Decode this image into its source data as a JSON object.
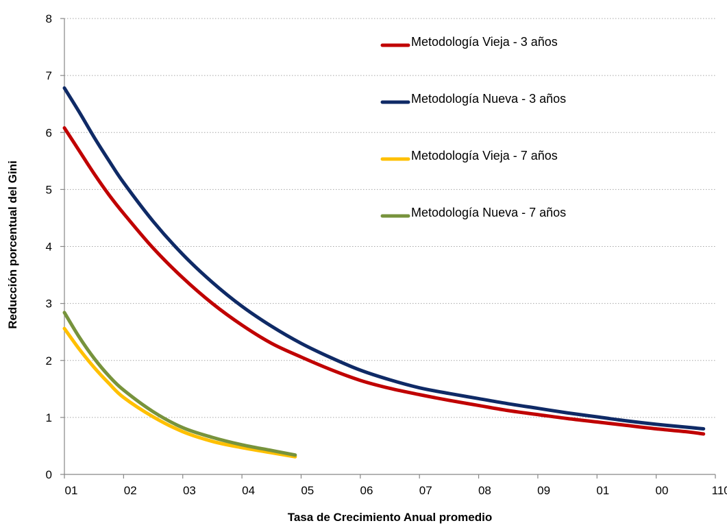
{
  "chart_data": {
    "type": "line",
    "title": "",
    "xlabel": "Tasa de Crecimiento Anual promedio",
    "ylabel": "Reducción porcentual del Gini",
    "ylim": [
      0,
      8
    ],
    "yticks": [
      0,
      1,
      2,
      3,
      4,
      5,
      6,
      7,
      8
    ],
    "xticks": [
      "01",
      "02",
      "03",
      "04",
      "05",
      "06",
      "07",
      "08",
      "09",
      "01",
      "00",
      "110"
    ],
    "grid": "horizontal dotted",
    "legend_position": "top-right",
    "series": [
      {
        "name": "Metodología Vieja - 3 años",
        "color": "#c00000",
        "x": [
          0.0,
          0.25,
          0.5,
          0.75,
          1.0,
          1.5,
          2.0,
          2.5,
          3.0,
          3.5,
          4.0,
          4.5,
          5.0,
          5.5,
          6.0,
          6.5,
          7.0,
          7.5,
          8.0,
          8.5,
          9.0,
          9.5,
          10.0,
          10.5,
          10.8
        ],
        "y": [
          6.08,
          5.68,
          5.28,
          4.91,
          4.58,
          3.97,
          3.45,
          3.0,
          2.62,
          2.3,
          2.06,
          1.84,
          1.65,
          1.51,
          1.4,
          1.3,
          1.21,
          1.12,
          1.05,
          0.98,
          0.92,
          0.86,
          0.8,
          0.75,
          0.71
        ]
      },
      {
        "name": "Metodología Nueva - 3 años",
        "color": "#0f2a66",
        "x": [
          0.0,
          0.25,
          0.5,
          0.75,
          1.0,
          1.5,
          2.0,
          2.5,
          3.0,
          3.5,
          4.0,
          4.5,
          5.0,
          5.5,
          6.0,
          6.5,
          7.0,
          7.5,
          8.0,
          8.5,
          9.0,
          9.5,
          10.0,
          10.5,
          10.8
        ],
        "y": [
          6.78,
          6.36,
          5.92,
          5.51,
          5.12,
          4.44,
          3.86,
          3.37,
          2.95,
          2.6,
          2.3,
          2.05,
          1.83,
          1.66,
          1.52,
          1.42,
          1.33,
          1.24,
          1.16,
          1.08,
          1.01,
          0.94,
          0.88,
          0.83,
          0.8
        ]
      },
      {
        "name": "Metodología Vieja - 7 años",
        "color": "#ffc000",
        "x": [
          0.0,
          0.25,
          0.5,
          0.75,
          1.0,
          1.5,
          2.0,
          2.5,
          3.0,
          3.5,
          3.9
        ],
        "y": [
          2.56,
          2.2,
          1.88,
          1.6,
          1.35,
          1.01,
          0.75,
          0.58,
          0.47,
          0.38,
          0.31
        ]
      },
      {
        "name": "Metodología Nueva - 7 años",
        "color": "#77933c",
        "x": [
          0.0,
          0.25,
          0.5,
          0.75,
          1.0,
          1.5,
          2.0,
          2.5,
          3.0,
          3.5,
          3.9
        ],
        "y": [
          2.84,
          2.41,
          2.04,
          1.73,
          1.48,
          1.1,
          0.82,
          0.65,
          0.52,
          0.42,
          0.34
        ]
      }
    ]
  }
}
